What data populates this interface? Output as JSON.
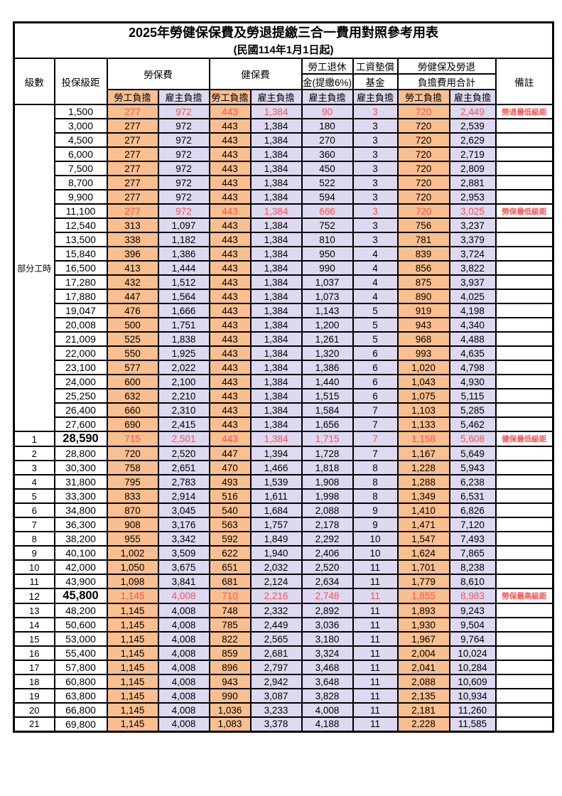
{
  "page": {
    "title": "2025年勞健保保費及勞退提繳三合一費用對照參考用表",
    "subtitle": "(民國114年1月1日起)"
  },
  "colors": {
    "worker_bg": "#FABF8F",
    "employer_bg": "#DDD9F0",
    "highlight_text": "#FF5050",
    "border": "#000000"
  },
  "header": {
    "level": "級數",
    "bracket": "投保級距",
    "labor_group": "勞保費",
    "health_group": "健保費",
    "pension_line1": "勞工退休",
    "pension_line2": "金(提繳6%)",
    "wage_fund_line1": "工資墊償",
    "wage_fund_line2": "基金",
    "total_line1": "勞健保及勞退",
    "total_line2": "負擔費用合計",
    "note": "備註",
    "worker": "勞工負擔",
    "employer": "雇主負擔"
  },
  "part_time_label": "部分工時",
  "rows": [
    {
      "l": "",
      "b": "1,500",
      "v": [
        "277",
        "972",
        "443",
        "1,384",
        "90",
        "3",
        "720",
        "2,449"
      ],
      "n": "勞退最低級距",
      "hl": true
    },
    {
      "l": "",
      "b": "3,000",
      "v": [
        "277",
        "972",
        "443",
        "1,384",
        "180",
        "3",
        "720",
        "2,539"
      ]
    },
    {
      "l": "",
      "b": "4,500",
      "v": [
        "277",
        "972",
        "443",
        "1,384",
        "270",
        "3",
        "720",
        "2,629"
      ]
    },
    {
      "l": "",
      "b": "6,000",
      "v": [
        "277",
        "972",
        "443",
        "1,384",
        "360",
        "3",
        "720",
        "2,719"
      ]
    },
    {
      "l": "",
      "b": "7,500",
      "v": [
        "277",
        "972",
        "443",
        "1,384",
        "450",
        "3",
        "720",
        "2,809"
      ]
    },
    {
      "l": "",
      "b": "8,700",
      "v": [
        "277",
        "972",
        "443",
        "1,384",
        "522",
        "3",
        "720",
        "2,881"
      ]
    },
    {
      "l": "",
      "b": "9,900",
      "v": [
        "277",
        "972",
        "443",
        "1,384",
        "594",
        "3",
        "720",
        "2,953"
      ]
    },
    {
      "l": "",
      "b": "11,100",
      "v": [
        "277",
        "972",
        "443",
        "1,384",
        "666",
        "3",
        "720",
        "3,025"
      ],
      "n": "勞保最低級距",
      "hl": true
    },
    {
      "l": "",
      "b": "12,540",
      "v": [
        "313",
        "1,097",
        "443",
        "1,384",
        "752",
        "3",
        "756",
        "3,237"
      ]
    },
    {
      "l": "",
      "b": "13,500",
      "v": [
        "338",
        "1,182",
        "443",
        "1,384",
        "810",
        "3",
        "781",
        "3,379"
      ]
    },
    {
      "l": "",
      "b": "15,840",
      "v": [
        "396",
        "1,386",
        "443",
        "1,384",
        "950",
        "4",
        "839",
        "3,724"
      ]
    },
    {
      "l": "",
      "b": "16,500",
      "v": [
        "413",
        "1,444",
        "443",
        "1,384",
        "990",
        "4",
        "856",
        "3,822"
      ]
    },
    {
      "l": "",
      "b": "17,280",
      "v": [
        "432",
        "1,512",
        "443",
        "1,384",
        "1,037",
        "4",
        "875",
        "3,937"
      ]
    },
    {
      "l": "",
      "b": "17,880",
      "v": [
        "447",
        "1,564",
        "443",
        "1,384",
        "1,073",
        "4",
        "890",
        "4,025"
      ]
    },
    {
      "l": "",
      "b": "19,047",
      "v": [
        "476",
        "1,666",
        "443",
        "1,384",
        "1,143",
        "5",
        "919",
        "4,198"
      ]
    },
    {
      "l": "",
      "b": "20,008",
      "v": [
        "500",
        "1,751",
        "443",
        "1,384",
        "1,200",
        "5",
        "943",
        "4,340"
      ]
    },
    {
      "l": "",
      "b": "21,009",
      "v": [
        "525",
        "1,838",
        "443",
        "1,384",
        "1,261",
        "5",
        "968",
        "4,488"
      ]
    },
    {
      "l": "",
      "b": "22,000",
      "v": [
        "550",
        "1,925",
        "443",
        "1,384",
        "1,320",
        "6",
        "993",
        "4,635"
      ]
    },
    {
      "l": "",
      "b": "23,100",
      "v": [
        "577",
        "2,022",
        "443",
        "1,384",
        "1,386",
        "6",
        "1,020",
        "4,798"
      ]
    },
    {
      "l": "",
      "b": "24,000",
      "v": [
        "600",
        "2,100",
        "443",
        "1,384",
        "1,440",
        "6",
        "1,043",
        "4,930"
      ]
    },
    {
      "l": "",
      "b": "25,250",
      "v": [
        "632",
        "2,210",
        "443",
        "1,384",
        "1,515",
        "6",
        "1,075",
        "5,115"
      ]
    },
    {
      "l": "",
      "b": "26,400",
      "v": [
        "660",
        "2,310",
        "443",
        "1,384",
        "1,584",
        "7",
        "1,103",
        "5,285"
      ]
    },
    {
      "l": "",
      "b": "27,600",
      "v": [
        "690",
        "2,415",
        "443",
        "1,384",
        "1,656",
        "7",
        "1,133",
        "5,462"
      ]
    },
    {
      "l": "1",
      "b": "28,590",
      "v": [
        "715",
        "2,501",
        "443",
        "1,384",
        "1,715",
        "7",
        "1,158",
        "5,608"
      ],
      "n": "健保最低級距",
      "hl": true,
      "big": true
    },
    {
      "l": "2",
      "b": "28,800",
      "v": [
        "720",
        "2,520",
        "447",
        "1,394",
        "1,728",
        "7",
        "1,167",
        "5,649"
      ]
    },
    {
      "l": "3",
      "b": "30,300",
      "v": [
        "758",
        "2,651",
        "470",
        "1,466",
        "1,818",
        "8",
        "1,228",
        "5,943"
      ]
    },
    {
      "l": "4",
      "b": "31,800",
      "v": [
        "795",
        "2,783",
        "493",
        "1,539",
        "1,908",
        "8",
        "1,288",
        "6,238"
      ]
    },
    {
      "l": "5",
      "b": "33,300",
      "v": [
        "833",
        "2,914",
        "516",
        "1,611",
        "1,998",
        "8",
        "1,349",
        "6,531"
      ]
    },
    {
      "l": "6",
      "b": "34,800",
      "v": [
        "870",
        "3,045",
        "540",
        "1,684",
        "2,088",
        "9",
        "1,410",
        "6,826"
      ]
    },
    {
      "l": "7",
      "b": "36,300",
      "v": [
        "908",
        "3,176",
        "563",
        "1,757",
        "2,178",
        "9",
        "1,471",
        "7,120"
      ]
    },
    {
      "l": "8",
      "b": "38,200",
      "v": [
        "955",
        "3,342",
        "592",
        "1,849",
        "2,292",
        "10",
        "1,547",
        "7,493"
      ]
    },
    {
      "l": "9",
      "b": "40,100",
      "v": [
        "1,002",
        "3,509",
        "622",
        "1,940",
        "2,406",
        "10",
        "1,624",
        "7,865"
      ]
    },
    {
      "l": "10",
      "b": "42,000",
      "v": [
        "1,050",
        "3,675",
        "651",
        "2,032",
        "2,520",
        "11",
        "1,701",
        "8,238"
      ]
    },
    {
      "l": "11",
      "b": "43,900",
      "v": [
        "1,098",
        "3,841",
        "681",
        "2,124",
        "2,634",
        "11",
        "1,779",
        "8,610"
      ]
    },
    {
      "l": "12",
      "b": "45,800",
      "v": [
        "1,145",
        "4,008",
        "710",
        "2,216",
        "2,748",
        "11",
        "1,855",
        "8,983"
      ],
      "n": "勞保最高級距",
      "hl": true,
      "big": true
    },
    {
      "l": "13",
      "b": "48,200",
      "v": [
        "1,145",
        "4,008",
        "748",
        "2,332",
        "2,892",
        "11",
        "1,893",
        "9,243"
      ]
    },
    {
      "l": "14",
      "b": "50,600",
      "v": [
        "1,145",
        "4,008",
        "785",
        "2,449",
        "3,036",
        "11",
        "1,930",
        "9,504"
      ]
    },
    {
      "l": "15",
      "b": "53,000",
      "v": [
        "1,145",
        "4,008",
        "822",
        "2,565",
        "3,180",
        "11",
        "1,967",
        "9,764"
      ]
    },
    {
      "l": "16",
      "b": "55,400",
      "v": [
        "1,145",
        "4,008",
        "859",
        "2,681",
        "3,324",
        "11",
        "2,004",
        "10,024"
      ]
    },
    {
      "l": "17",
      "b": "57,800",
      "v": [
        "1,145",
        "4,008",
        "896",
        "2,797",
        "3,468",
        "11",
        "2,041",
        "10,284"
      ]
    },
    {
      "l": "18",
      "b": "60,800",
      "v": [
        "1,145",
        "4,008",
        "943",
        "2,942",
        "3,648",
        "11",
        "2,088",
        "10,609"
      ]
    },
    {
      "l": "19",
      "b": "63,800",
      "v": [
        "1,145",
        "4,008",
        "990",
        "3,087",
        "3,828",
        "11",
        "2,135",
        "10,934"
      ]
    },
    {
      "l": "20",
      "b": "66,800",
      "v": [
        "1,145",
        "4,008",
        "1,036",
        "3,233",
        "4,008",
        "11",
        "2,181",
        "11,260"
      ]
    },
    {
      "l": "21",
      "b": "69,800",
      "v": [
        "1,145",
        "4,008",
        "1,083",
        "3,378",
        "4,188",
        "11",
        "2,228",
        "11,585"
      ]
    }
  ]
}
